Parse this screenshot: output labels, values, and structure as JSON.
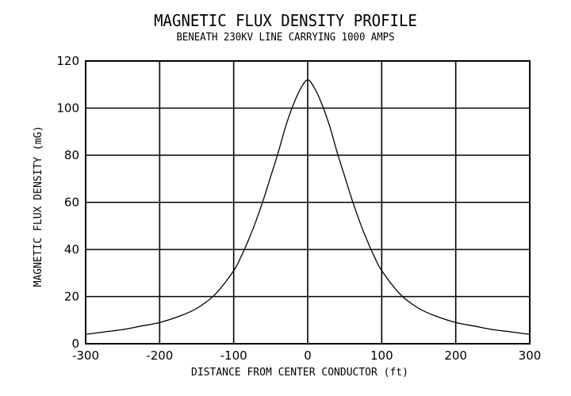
{
  "chart_data": {
    "type": "line",
    "title": "MAGNETIC FLUX DENSITY PROFILE",
    "subtitle": "BENEATH 230KV LINE CARRYING 1000 AMPS",
    "xlabel": "DISTANCE FROM CENTER CONDUCTOR (ft)",
    "ylabel": "MAGNETIC FLUX DENSITY (mG)",
    "xlim": [
      -300,
      300
    ],
    "ylim": [
      0,
      120
    ],
    "xticks": [
      -300,
      -200,
      -100,
      0,
      100,
      200,
      300
    ],
    "yticks": [
      0,
      20,
      40,
      60,
      80,
      100,
      120
    ],
    "xtick_labels": [
      "-300",
      "-200",
      "-100",
      "0",
      "100",
      "200",
      "300"
    ],
    "ytick_labels": [
      "0",
      "20",
      "40",
      "60",
      "80",
      "100",
      "120"
    ],
    "grid": true,
    "legend": "none",
    "line_color": "#000000",
    "series": [
      {
        "x": [
          -300,
          -275,
          -250,
          -225,
          -200,
          -175,
          -150,
          -125,
          -100,
          -90,
          -80,
          -70,
          -60,
          -50,
          -40,
          -30,
          -20,
          -10,
          0,
          10,
          20,
          30,
          40,
          50,
          60,
          70,
          80,
          90,
          100,
          125,
          150,
          175,
          200,
          225,
          250,
          275,
          300
        ],
        "y": [
          4,
          5,
          6,
          7.5,
          9,
          11.5,
          15,
          21,
          31,
          37,
          44,
          52,
          61,
          71,
          81,
          92,
          101,
          108,
          112,
          108,
          101,
          92,
          81,
          71,
          61,
          52,
          44,
          37,
          31,
          21,
          15,
          11.5,
          9,
          7.5,
          6,
          5,
          4
        ]
      }
    ]
  }
}
